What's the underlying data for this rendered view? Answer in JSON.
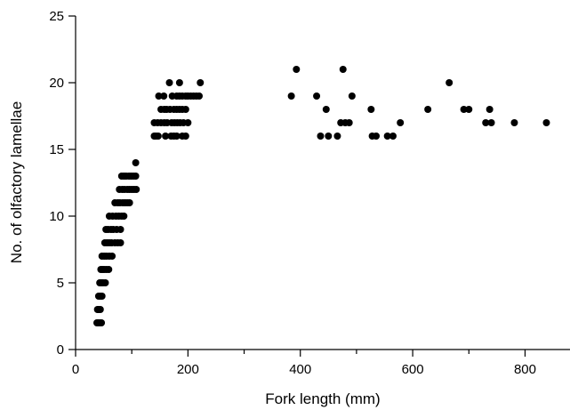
{
  "chart_data": {
    "type": "scatter",
    "xlabel": "Fork length (mm)",
    "ylabel": "No. of olfactory lamellae",
    "xlim": [
      0,
      880
    ],
    "ylim": [
      0,
      25
    ],
    "x_ticks": [
      0,
      200,
      400,
      600,
      800
    ],
    "x_minor_ticks": [
      100,
      300,
      500,
      700
    ],
    "y_ticks": [
      0,
      5,
      10,
      15,
      20,
      25
    ],
    "grid": false,
    "legend": "none",
    "marker_color": "#000000",
    "series": [
      {
        "points": [
          [
            38,
            2
          ],
          [
            40,
            2
          ],
          [
            43,
            2
          ],
          [
            46,
            2
          ],
          [
            39,
            3
          ],
          [
            41,
            3
          ],
          [
            44,
            3
          ],
          [
            41,
            4
          ],
          [
            44,
            4
          ],
          [
            47,
            4
          ],
          [
            43,
            5
          ],
          [
            46,
            5
          ],
          [
            49,
            5
          ],
          [
            53,
            5
          ],
          [
            45,
            6
          ],
          [
            48,
            6
          ],
          [
            51,
            6
          ],
          [
            55,
            6
          ],
          [
            59,
            6
          ],
          [
            47,
            7
          ],
          [
            51,
            7
          ],
          [
            55,
            7
          ],
          [
            60,
            7
          ],
          [
            65,
            7
          ],
          [
            52,
            8
          ],
          [
            56,
            8
          ],
          [
            60,
            8
          ],
          [
            64,
            8
          ],
          [
            70,
            8
          ],
          [
            75,
            8
          ],
          [
            80,
            8
          ],
          [
            54,
            9
          ],
          [
            58,
            9
          ],
          [
            63,
            9
          ],
          [
            67,
            9
          ],
          [
            73,
            9
          ],
          [
            80,
            9
          ],
          [
            60,
            10
          ],
          [
            66,
            10
          ],
          [
            72,
            10
          ],
          [
            77,
            10
          ],
          [
            82,
            10
          ],
          [
            86,
            10
          ],
          [
            70,
            11
          ],
          [
            75,
            11
          ],
          [
            79,
            11
          ],
          [
            84,
            11
          ],
          [
            88,
            11
          ],
          [
            92,
            11
          ],
          [
            96,
            11
          ],
          [
            78,
            12
          ],
          [
            83,
            12
          ],
          [
            87,
            12
          ],
          [
            92,
            12
          ],
          [
            96,
            12
          ],
          [
            100,
            12
          ],
          [
            104,
            12
          ],
          [
            108,
            12
          ],
          [
            82,
            13
          ],
          [
            86,
            13
          ],
          [
            90,
            13
          ],
          [
            95,
            13
          ],
          [
            99,
            13
          ],
          [
            103,
            13
          ],
          [
            107,
            13
          ],
          [
            107,
            14
          ],
          [
            140,
            16
          ],
          [
            143,
            16
          ],
          [
            147,
            16
          ],
          [
            160,
            16
          ],
          [
            170,
            16
          ],
          [
            175,
            16
          ],
          [
            180,
            16
          ],
          [
            190,
            16
          ],
          [
            196,
            16
          ],
          [
            140,
            17
          ],
          [
            146,
            17
          ],
          [
            152,
            17
          ],
          [
            158,
            17
          ],
          [
            163,
            17
          ],
          [
            171,
            17
          ],
          [
            176,
            17
          ],
          [
            181,
            17
          ],
          [
            186,
            17
          ],
          [
            192,
            17
          ],
          [
            200,
            17
          ],
          [
            152,
            18
          ],
          [
            158,
            18
          ],
          [
            162,
            18
          ],
          [
            168,
            18
          ],
          [
            175,
            18
          ],
          [
            180,
            18
          ],
          [
            185,
            18
          ],
          [
            190,
            18
          ],
          [
            196,
            18
          ],
          [
            148,
            19
          ],
          [
            157,
            19
          ],
          [
            172,
            19
          ],
          [
            180,
            19
          ],
          [
            185,
            19
          ],
          [
            190,
            19
          ],
          [
            196,
            19
          ],
          [
            200,
            19
          ],
          [
            205,
            19
          ],
          [
            210,
            19
          ],
          [
            215,
            19
          ],
          [
            220,
            19
          ],
          [
            167,
            20
          ],
          [
            185,
            20
          ],
          [
            222,
            20
          ],
          [
            384,
            19
          ],
          [
            393,
            21
          ],
          [
            429,
            19
          ],
          [
            436,
            16
          ],
          [
            446,
            18
          ],
          [
            450,
            16
          ],
          [
            466,
            16
          ],
          [
            472,
            17
          ],
          [
            476,
            21
          ],
          [
            480,
            17
          ],
          [
            487,
            17
          ],
          [
            492,
            19
          ],
          [
            526,
            18
          ],
          [
            528,
            16
          ],
          [
            535,
            16
          ],
          [
            555,
            16
          ],
          [
            565,
            16
          ],
          [
            578,
            17
          ],
          [
            627,
            18
          ],
          [
            665,
            20
          ],
          [
            691,
            18
          ],
          [
            700,
            18
          ],
          [
            730,
            17
          ],
          [
            737,
            18
          ],
          [
            740,
            17
          ],
          [
            781,
            17
          ],
          [
            838,
            17
          ]
        ]
      }
    ]
  }
}
